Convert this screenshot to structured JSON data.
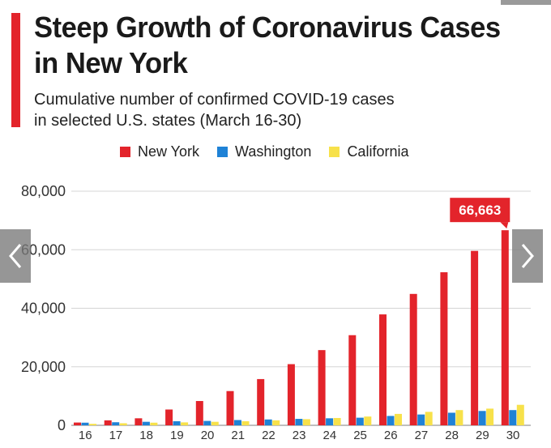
{
  "chart_data": {
    "type": "bar",
    "title": "Steep Growth of Coronavirus Cases in New York",
    "subtitle_lines": [
      "Cumulative number of confirmed COVID-19 cases",
      "in selected U.S. states (March 16-30)"
    ],
    "xlabel": "",
    "ylabel": "",
    "ylim": [
      0,
      80000
    ],
    "yticks": [
      0,
      20000,
      40000,
      60000,
      80000
    ],
    "ytick_labels": [
      "0",
      "20,000",
      "40,000",
      "60,000",
      "80,000"
    ],
    "grid": true,
    "legend_position": "top",
    "categories": [
      "16",
      "17",
      "18",
      "19",
      "20",
      "21",
      "22",
      "23",
      "24",
      "25",
      "26",
      "27",
      "28",
      "29",
      "30"
    ],
    "series": [
      {
        "name": "New York",
        "color": "#e3242b",
        "values": [
          950,
          1700,
          2400,
          5400,
          8300,
          11700,
          15800,
          20900,
          25700,
          30800,
          37900,
          44900,
          52300,
          59600,
          66663
        ]
      },
      {
        "name": "Washington",
        "color": "#1f82d6",
        "values": [
          900,
          1050,
          1200,
          1400,
          1500,
          1800,
          2000,
          2200,
          2400,
          2600,
          3200,
          3700,
          4300,
          4900,
          5200
        ]
      },
      {
        "name": "California",
        "color": "#f7e14a",
        "values": [
          500,
          700,
          900,
          1000,
          1200,
          1400,
          1700,
          2100,
          2500,
          3000,
          3900,
          4600,
          5200,
          5700,
          7000
        ]
      }
    ],
    "annotation": {
      "label": "66,663",
      "series": "New York",
      "category": "30",
      "color": "#e3242b"
    }
  },
  "icons": {
    "prev": "chevron-left-icon",
    "next": "chevron-right-icon"
  }
}
